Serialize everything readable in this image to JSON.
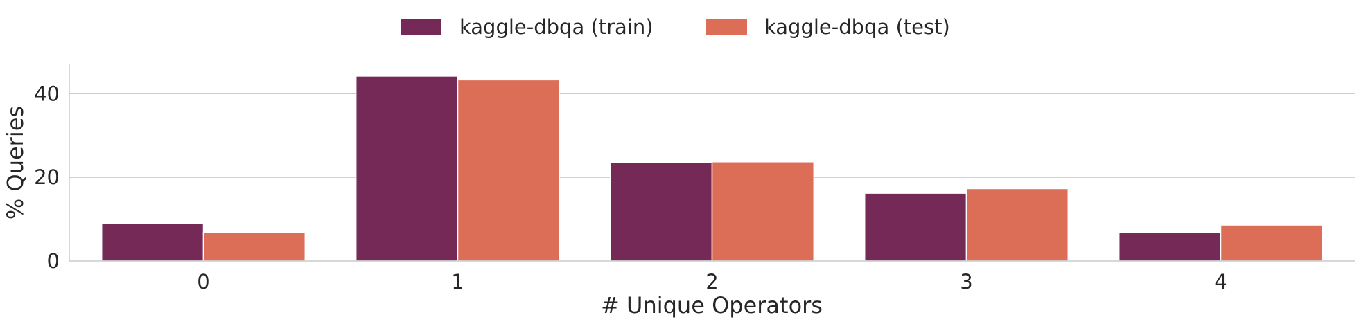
{
  "chart_data": {
    "type": "bar",
    "categories": [
      "0",
      "1",
      "2",
      "3",
      "4"
    ],
    "series": [
      {
        "name": "kaggle-dbqa (train)",
        "color": "#752957",
        "values": [
          9.0,
          44.2,
          23.5,
          16.2,
          6.8
        ]
      },
      {
        "name": "kaggle-dbqa (test)",
        "color": "#dc6e58",
        "values": [
          6.9,
          43.3,
          23.7,
          17.3,
          8.6
        ]
      }
    ],
    "title": "",
    "xlabel": "# Unique Operators",
    "ylabel": "% Queries",
    "ylim": [
      0,
      47
    ],
    "yticks": [
      "0",
      "20",
      "40"
    ],
    "grid": "horizontal",
    "legend_position": "top-center"
  }
}
